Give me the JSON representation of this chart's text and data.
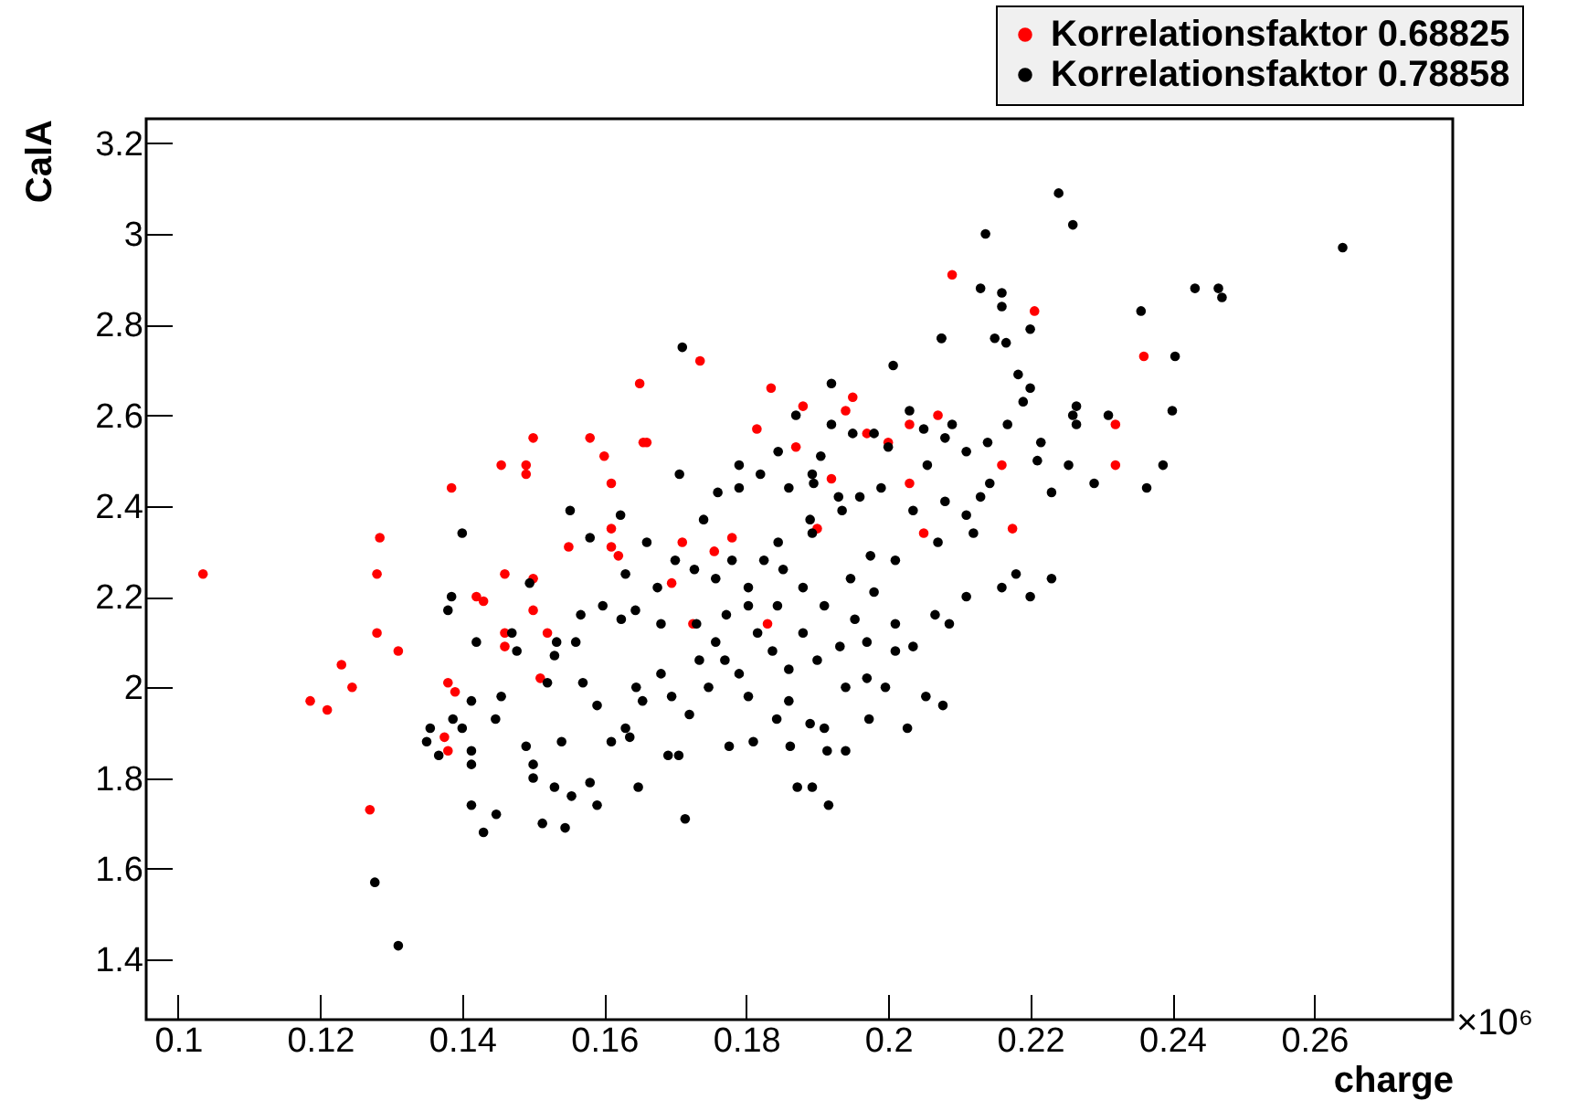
{
  "chart_data": {
    "type": "scatter",
    "xlabel": "charge",
    "ylabel": "CalA",
    "annotations": [
      "×10⁶"
    ],
    "marker": "circle",
    "legend": "top right",
    "grid": false,
    "xlim": [
      0.0955,
      0.2795
    ],
    "xticks": [
      0.1,
      0.12,
      0.14,
      0.16,
      0.18,
      0.2,
      0.22,
      0.24,
      0.26
    ],
    "ylim": [
      1.267,
      3.254
    ],
    "yticks": [
      1.4,
      1.6,
      1.8,
      2,
      2.2,
      2.4,
      2.6,
      2.8,
      3,
      3.2
    ],
    "series": [
      {
        "name": "Korrelationsfaktor 0.68825",
        "color": "#ff0000",
        "x": [
          0.1035,
          0.1186,
          0.121,
          0.123,
          0.1245,
          0.127,
          0.1284,
          0.128,
          0.128,
          0.131,
          0.1375,
          0.138,
          0.138,
          0.1385,
          0.139,
          0.142,
          0.143,
          0.1455,
          0.146,
          0.146,
          0.146,
          0.149,
          0.149,
          0.15,
          0.15,
          0.15,
          0.151,
          0.155,
          0.152,
          0.158,
          0.16,
          0.161,
          0.161,
          0.161,
          0.162,
          0.165,
          0.1655,
          0.166,
          0.171,
          0.1735,
          0.1695,
          0.1725,
          0.1755,
          0.178,
          0.1815,
          0.183,
          0.1835,
          0.187,
          0.188,
          0.19,
          0.192,
          0.194,
          0.195,
          0.197,
          0.2,
          0.203,
          0.203,
          0.205,
          0.207,
          0.209,
          0.216,
          0.2175,
          0.2206,
          0.232,
          0.232,
          0.236
        ],
        "values": [
          2.25,
          1.97,
          1.95,
          2.05,
          2,
          1.73,
          2.33,
          2.25,
          2.12,
          2.08,
          1.89,
          1.86,
          2.01,
          2.44,
          1.99,
          2.2,
          2.19,
          2.49,
          2.25,
          2.09,
          2.12,
          2.49,
          2.47,
          2.55,
          2.24,
          2.17,
          2.02,
          2.31,
          2.12,
          2.55,
          2.51,
          2.45,
          2.35,
          2.31,
          2.29,
          2.67,
          2.54,
          2.54,
          2.32,
          2.72,
          2.23,
          2.14,
          2.3,
          2.33,
          2.57,
          2.14,
          2.66,
          2.53,
          2.62,
          2.35,
          2.46,
          2.61,
          2.64,
          2.56,
          2.54,
          2.58,
          2.45,
          2.34,
          2.6,
          2.91,
          2.49,
          2.35,
          2.83,
          2.49,
          2.58,
          2.73
        ]
      },
      {
        "name": "Korrelationsfaktor 0.78858",
        "color": "#000000",
        "x": [
          0.224,
          0.226,
          0.2137,
          0.264,
          0.2432,
          0.2465,
          0.247,
          0.2356,
          0.213,
          0.216,
          0.216,
          0.22,
          0.2075,
          0.215,
          0.2166,
          0.2183,
          0.2404,
          0.171,
          0.22,
          0.219,
          0.2265,
          0.231,
          0.24,
          0.226,
          0.2168,
          0.214,
          0.2387,
          0.2364,
          0.229,
          0.2254,
          0.2265,
          0.221,
          0.2215,
          0.223,
          0.2143,
          0.213,
          0.211,
          0.212,
          0.2007,
          0.2075,
          0.192,
          0.187,
          0.192,
          0.195,
          0.198,
          0.2,
          0.203,
          0.205,
          0.208,
          0.209,
          0.2055,
          0.211,
          0.2035,
          0.208,
          0.207,
          0.201,
          0.1975,
          0.193,
          0.189,
          0.1845,
          0.179,
          0.179,
          0.176,
          0.174,
          0.182,
          0.1845,
          0.1905,
          0.1895,
          0.1935,
          0.196,
          0.199,
          0.198,
          0.1947,
          0.191,
          0.188,
          0.1852,
          0.1825,
          0.1803,
          0.178,
          0.1757,
          0.1727,
          0.17,
          0.1675,
          0.166,
          0.163,
          0.158,
          0.1598,
          0.1624,
          0.1644,
          0.156,
          0.1533,
          0.153,
          0.147,
          0.1477,
          0.152,
          0.157,
          0.159,
          0.1645,
          0.168,
          0.1695,
          0.1734,
          0.1747,
          0.177,
          0.179,
          0.1803,
          0.172,
          0.169,
          0.1705,
          0.1636,
          0.163,
          0.1654,
          0.161,
          0.158,
          0.153,
          0.15,
          0.149,
          0.1447,
          0.1455,
          0.1413,
          0.14,
          0.1387,
          0.1355,
          0.135,
          0.1367,
          0.1413,
          0.138,
          0.1413,
          0.143,
          0.1448,
          0.1513,
          0.1545,
          0.1554,
          0.159,
          0.154,
          0.15,
          0.1648,
          0.1714,
          0.1413,
          0.1277,
          0.131,
          0.14,
          0.1385,
          0.1495,
          0.181,
          0.1776,
          0.1843,
          0.186,
          0.189,
          0.1862,
          0.1914,
          0.191,
          0.1872,
          0.1916,
          0.1893,
          0.194,
          0.197,
          0.1996,
          0.201,
          0.2035,
          0.2066,
          0.2086,
          0.211,
          0.216,
          0.218,
          0.22,
          0.223,
          0.1953,
          0.197,
          0.201,
          0.188,
          0.1837,
          0.1816,
          0.1772,
          0.1757,
          0.173,
          0.1803,
          0.1844,
          0.1932,
          0.19,
          0.186,
          0.2053,
          0.2077,
          0.2027,
          0.194,
          0.1973,
          0.1893,
          0.186,
          0.1893,
          0.1706,
          0.1623,
          0.1552,
          0.1567,
          0.168,
          0.142
        ],
        "values": [
          3.09,
          3.02,
          3,
          2.97,
          2.88,
          2.88,
          2.86,
          2.83,
          2.88,
          2.87,
          2.84,
          2.79,
          2.77,
          2.77,
          2.76,
          2.69,
          2.73,
          2.75,
          2.66,
          2.63,
          2.62,
          2.6,
          2.61,
          2.6,
          2.58,
          2.54,
          2.49,
          2.44,
          2.45,
          2.49,
          2.58,
          2.5,
          2.54,
          2.43,
          2.45,
          2.42,
          2.38,
          2.34,
          2.71,
          2.77,
          2.67,
          2.6,
          2.58,
          2.56,
          2.56,
          2.53,
          2.61,
          2.57,
          2.55,
          2.58,
          2.49,
          2.52,
          2.39,
          2.41,
          2.32,
          2.28,
          2.29,
          2.42,
          2.37,
          2.32,
          2.49,
          2.44,
          2.43,
          2.37,
          2.47,
          2.52,
          2.51,
          2.45,
          2.39,
          2.42,
          2.44,
          2.21,
          2.24,
          2.18,
          2.22,
          2.26,
          2.28,
          2.22,
          2.28,
          2.24,
          2.26,
          2.28,
          2.22,
          2.32,
          2.25,
          2.33,
          2.18,
          2.15,
          2.17,
          2.1,
          2.1,
          2.07,
          2.12,
          2.08,
          2.01,
          2.01,
          1.96,
          2,
          2.03,
          1.98,
          2.06,
          2,
          2.06,
          2.03,
          1.98,
          1.94,
          1.85,
          1.85,
          1.89,
          1.91,
          1.97,
          1.88,
          1.79,
          1.78,
          1.83,
          1.87,
          1.93,
          1.98,
          1.97,
          1.91,
          1.93,
          1.91,
          1.88,
          1.85,
          1.86,
          2.17,
          1.74,
          1.68,
          1.72,
          1.7,
          1.69,
          1.76,
          1.74,
          1.88,
          1.8,
          1.78,
          1.71,
          1.83,
          1.57,
          1.43,
          2.34,
          2.2,
          2.23,
          1.88,
          1.87,
          1.93,
          1.97,
          1.92,
          1.87,
          1.86,
          1.91,
          1.78,
          1.74,
          1.78,
          2,
          2.02,
          2,
          2.08,
          2.09,
          2.16,
          2.14,
          2.2,
          2.22,
          2.25,
          2.2,
          2.24,
          2.15,
          2.1,
          2.14,
          2.12,
          2.08,
          2.12,
          2.16,
          2.1,
          2.14,
          2.18,
          2.18,
          2.09,
          2.06,
          2.04,
          1.98,
          1.96,
          1.91,
          1.86,
          1.93,
          2.34,
          2.44,
          2.47,
          2.47,
          2.38,
          2.39,
          2.16,
          2.14,
          2.1
        ]
      }
    ]
  }
}
